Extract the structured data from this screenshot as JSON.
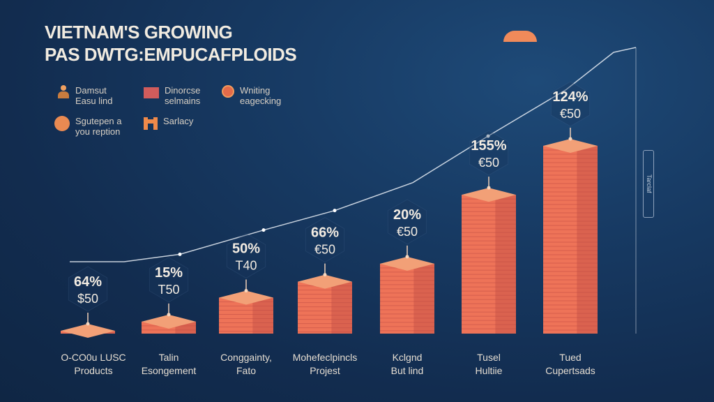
{
  "title": {
    "line1": "VIETNAM'S GROWING",
    "line2": "PAS DWTG:EMPUCAFPLOIDS"
  },
  "legend": [
    {
      "icon": "people-icon",
      "line1": "Damsut",
      "line2": "Easu lind"
    },
    {
      "icon": "rect-swatch",
      "line1": "Dinorcse",
      "line2": "selmains"
    },
    {
      "icon": "amber-circle-icon",
      "line1": "Wniting",
      "line2": "eagecking"
    },
    {
      "icon": "orange-circle-icon",
      "line1": "Sgutepen a",
      "line2": "you reption"
    },
    {
      "icon": "h-icon",
      "line1": "Sarlacy",
      "line2": ""
    }
  ],
  "side_label": "Tarclaf",
  "colors": {
    "bar_top": "#f2a077",
    "bar_front": "#ee7358",
    "bar_side": "#c24e45",
    "line": "#e8edf4"
  },
  "chart_data": {
    "type": "bar",
    "title": "VIETNAM'S GROWING PAS DWTG:EMPUCAFPLOIDS",
    "categories": [
      [
        "O-CO0u LUSC",
        "Products"
      ],
      [
        "Talin",
        "Esongement"
      ],
      [
        "Conggainty,",
        "Fato"
      ],
      [
        "Mohefeclpincls",
        "Projest"
      ],
      [
        "Kclgnd",
        "But lind"
      ],
      [
        "Tusel",
        "Hultiie"
      ],
      [
        "Tued",
        "Cupertsads"
      ]
    ],
    "values": [
      2,
      12,
      36,
      52,
      70,
      139,
      188
    ],
    "pct_labels": [
      "64%",
      "15%",
      "50%",
      "66%",
      "20%",
      "155%",
      "124%"
    ],
    "sub_labels": [
      "$50",
      "T50",
      "T40",
      "€50",
      "€50",
      "€50",
      "€50"
    ],
    "trend": [
      0,
      8,
      34,
      55,
      85,
      135,
      185,
      225
    ],
    "ylim": [
      0,
      225
    ]
  }
}
